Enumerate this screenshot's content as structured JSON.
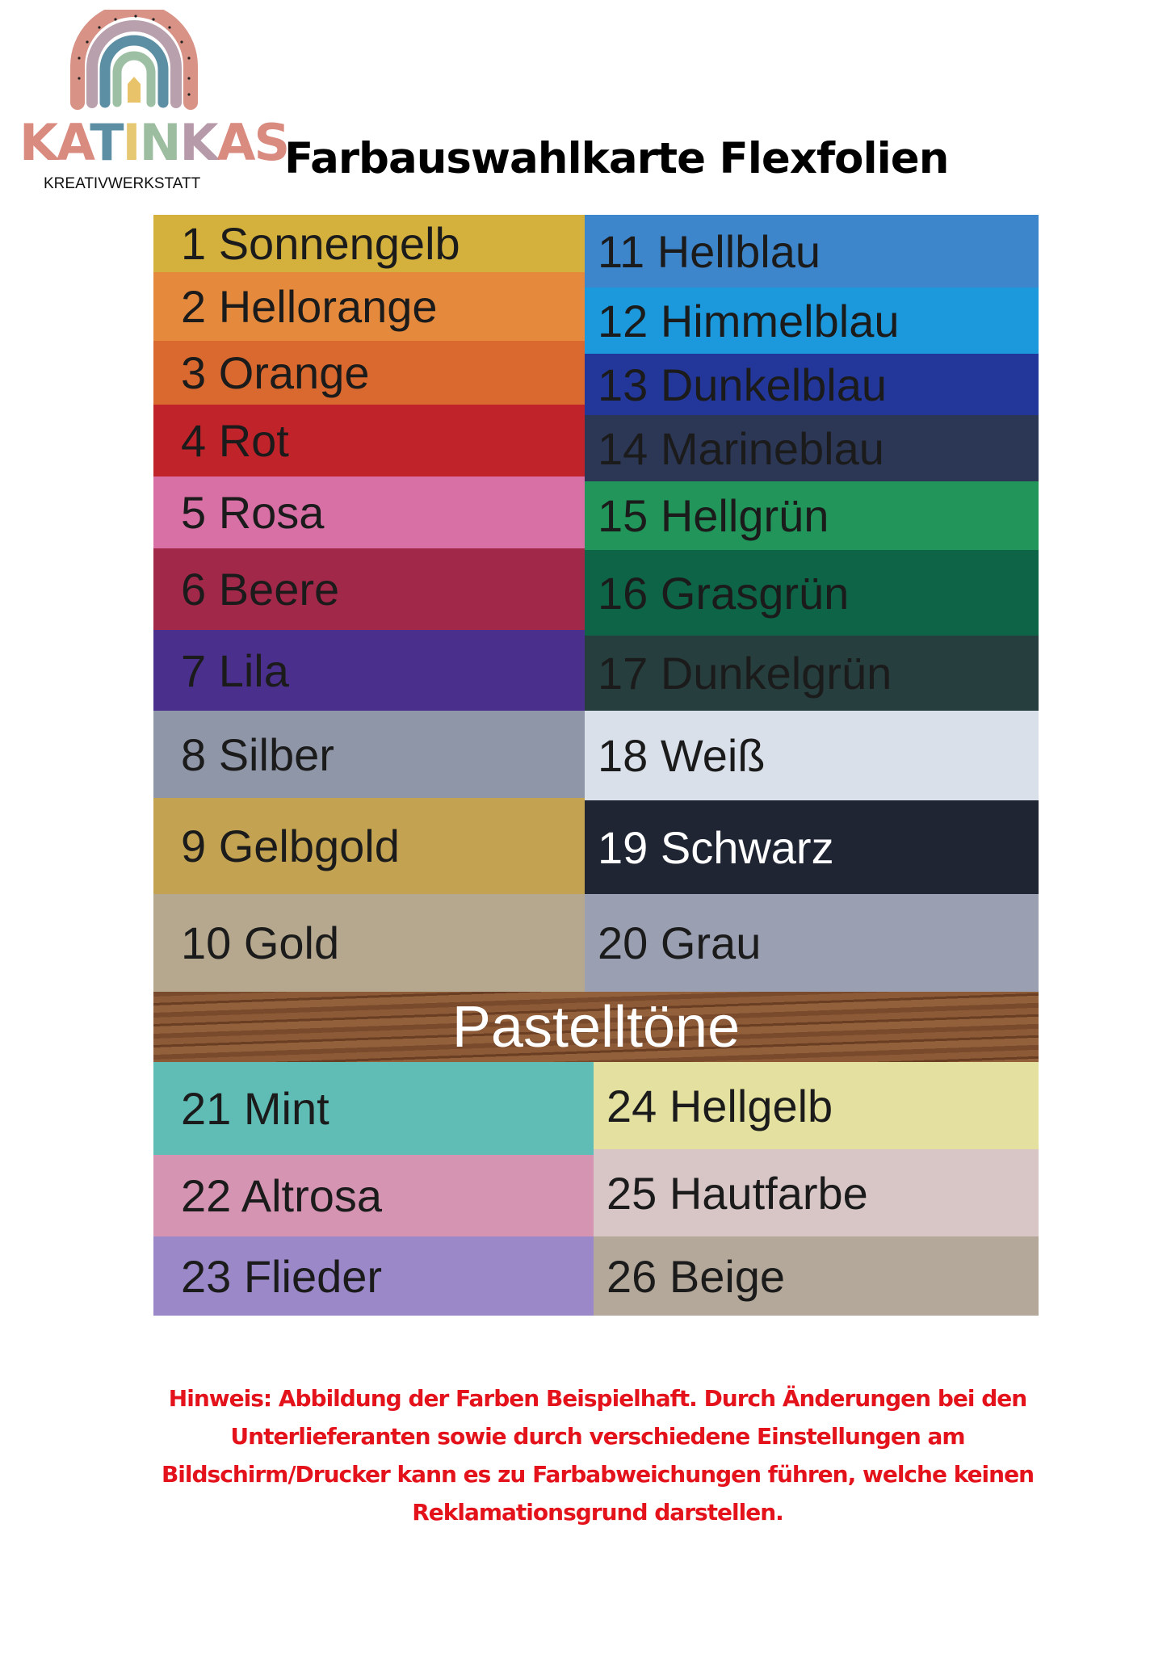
{
  "logo": {
    "brand": "KATINKAS",
    "tagline": "KREATIVWERKSTATT"
  },
  "title": "Farbauswahlkarte Flexfolien",
  "standard_colors": {
    "left": [
      {
        "label": "1 Sonnengelb",
        "color": "#d4b03c"
      },
      {
        "label": "2 Hellorange",
        "color": "#e58a3c"
      },
      {
        "label": "3 Orange",
        "color": "#d9692e"
      },
      {
        "label": "4 Rot",
        "color": "#c1232b"
      },
      {
        "label": "5 Rosa",
        "color": "#d870a6"
      },
      {
        "label": "6 Beere",
        "color": "#a2284a"
      },
      {
        "label": "7 Lila",
        "color": "#4a2f8c"
      },
      {
        "label": "8 Silber",
        "color": "#8f96a8"
      },
      {
        "label": "9 Gelbgold",
        "color": "#c3a351"
      },
      {
        "label": "10 Gold",
        "color": "#b5a88e"
      }
    ],
    "right": [
      {
        "label": "11 Hellblau",
        "color": "#3e86cc"
      },
      {
        "label": "12 Himmelblau",
        "color": "#1c98dc"
      },
      {
        "label": "13 Dunkelblau",
        "color": "#23379a"
      },
      {
        "label": "14 Marineblau",
        "color": "#2c3756"
      },
      {
        "label": "15 Hellgrün",
        "color": "#21955a"
      },
      {
        "label": "16 Grasgrün",
        "color": "#0e6446"
      },
      {
        "label": "17 Dunkelgrün",
        "color": "#263f3e"
      },
      {
        "label": "18 Weiß",
        "color": "#d9e0ea"
      },
      {
        "label": "19 Schwarz",
        "color": "#1f2533"
      },
      {
        "label": "20 Grau",
        "color": "#9aa0b2"
      }
    ]
  },
  "pastel_header": "Pastelltöne",
  "pastel_colors": {
    "left": [
      {
        "label": "21 Mint",
        "color": "#5fbdb6"
      },
      {
        "label": "22 Altrosa",
        "color": "#d494b2"
      },
      {
        "label": "23 Flieder",
        "color": "#9b88c8"
      }
    ],
    "right": [
      {
        "label": "24 Hellgelb",
        "color": "#e4e1a0"
      },
      {
        "label": "25 Hautfarbe",
        "color": "#d8c6c6"
      },
      {
        "label": "26 Beige",
        "color": "#b4a89a"
      }
    ]
  },
  "note": [
    "Hinweis: Abbildung der Farben Beispielhaft. Durch Änderungen bei den",
    "Unterlieferanten sowie durch verschiedene Einstellungen am",
    "Bildschirm/Drucker kann es zu Farbabweichungen führen, welche keinen",
    "Reklamationsgrund darstellen."
  ],
  "note_color": "#e3121b"
}
